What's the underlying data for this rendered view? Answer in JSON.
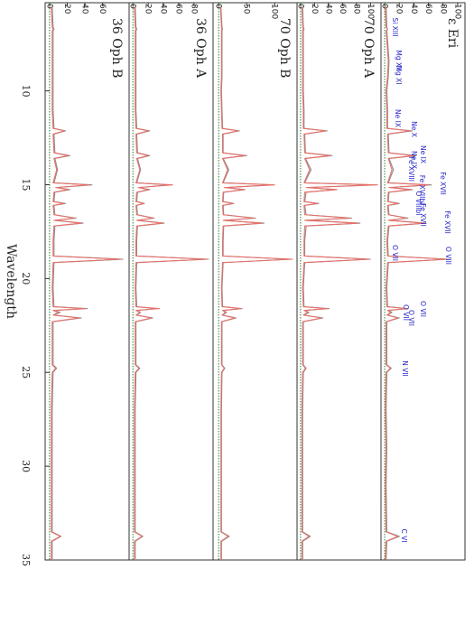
{
  "chart_data": [
    {
      "type": "line",
      "title": "ε Eri",
      "x": [
        5.5,
        6.6,
        6.7,
        6.8,
        8.4,
        9.2,
        10,
        11,
        12.0,
        12.13,
        12.3,
        13.3,
        13.45,
        13.6,
        14.2,
        14.9,
        15.01,
        15.15,
        15.26,
        15.4,
        15.9,
        16.0,
        16.1,
        16.6,
        16.78,
        16.9,
        17.05,
        17.2,
        18.0,
        18.8,
        18.97,
        19.15,
        20.5,
        21.5,
        21.6,
        21.7,
        21.8,
        21.95,
        22.1,
        22.3,
        23.5,
        24.6,
        24.78,
        25.0,
        27,
        29,
        31,
        33.5,
        33.74,
        34,
        35
      ],
      "xlim": [
        5.3,
        35
      ],
      "ylim": [
        -5,
        110
      ],
      "yticks": [
        0,
        20,
        40,
        60,
        80,
        100
      ],
      "series": [
        {
          "color": "#8c8c8c",
          "values": [
            2,
            3,
            4,
            3,
            6,
            5,
            3,
            4,
            4,
            38,
            5,
            6,
            43,
            6,
            12,
            5,
            64,
            8,
            38,
            6,
            5,
            20,
            5,
            6,
            32,
            6,
            57,
            6,
            4,
            5,
            88,
            5,
            3,
            4,
            32,
            5,
            10,
            4,
            20,
            3,
            3,
            3,
            9,
            3,
            2,
            3,
            2,
            3,
            20,
            3,
            2
          ]
        },
        {
          "color": "#e8706a",
          "values": [
            1,
            2,
            4,
            2,
            5,
            4,
            2,
            3,
            3,
            35,
            4,
            5,
            40,
            5,
            10,
            4,
            60,
            6,
            35,
            5,
            4,
            18,
            4,
            5,
            30,
            5,
            54,
            5,
            3,
            4,
            85,
            4,
            2,
            3,
            30,
            4,
            8,
            3,
            18,
            2,
            2,
            2,
            8,
            2,
            1,
            2,
            1,
            2,
            18,
            2,
            1
          ]
        }
      ],
      "annotations": [
        "Si XIII",
        "Mg XII",
        "Mg XI",
        "Ne IX",
        "Ne X",
        "Ne IX",
        "Ne IX",
        "Fe XVIII",
        "Fe XVII",
        "Fe XVIIbl",
        "O VIIIbl",
        "Fe XVII",
        "Fe XVII",
        "O VII",
        "O VIII",
        "O VII",
        "O VII",
        "O VII",
        "N VII",
        "C VI"
      ]
    },
    {
      "type": "line",
      "title": "70 Oph A",
      "x": [
        5.5,
        6.6,
        6.7,
        6.8,
        8.4,
        9.2,
        10,
        11,
        12.0,
        12.13,
        12.3,
        13.3,
        13.45,
        13.6,
        14.2,
        14.9,
        15.01,
        15.15,
        15.26,
        15.4,
        15.9,
        16.0,
        16.1,
        16.6,
        16.78,
        16.9,
        17.05,
        17.2,
        18.0,
        18.8,
        18.97,
        19.15,
        20.5,
        21.5,
        21.6,
        21.7,
        21.8,
        21.95,
        22.1,
        22.3,
        23.5,
        24.6,
        24.78,
        25.0,
        27,
        29,
        31,
        33.5,
        33.74,
        34,
        35
      ],
      "xlim": [
        5.3,
        35
      ],
      "ylim": [
        -5,
        115
      ],
      "yticks": [
        0,
        20,
        40,
        60,
        80,
        100
      ],
      "series": [
        {
          "color": "#8c8c8c",
          "values": [
            3,
            4,
            5,
            4,
            4,
            4,
            4,
            5,
            5,
            38,
            6,
            7,
            45,
            7,
            15,
            6,
            105,
            10,
            50,
            8,
            6,
            26,
            6,
            8,
            73,
            8,
            85,
            8,
            6,
            6,
            100,
            6,
            4,
            5,
            41,
            6,
            12,
            5,
            32,
            4,
            4,
            4,
            8,
            4,
            3,
            3,
            3,
            3,
            14,
            3,
            3
          ]
        },
        {
          "color": "#e8706a",
          "values": [
            2,
            3,
            4,
            3,
            3,
            3,
            3,
            4,
            4,
            36,
            5,
            6,
            42,
            6,
            13,
            5,
            110,
            8,
            52,
            6,
            5,
            24,
            5,
            6,
            70,
            6,
            82,
            6,
            5,
            5,
            98,
            5,
            3,
            4,
            38,
            5,
            10,
            4,
            30,
            3,
            3,
            3,
            7,
            3,
            2,
            2,
            2,
            2,
            12,
            2,
            2
          ]
        }
      ]
    },
    {
      "type": "line",
      "title": "70 Oph B",
      "x": [
        5.5,
        6.6,
        6.7,
        6.8,
        8.4,
        9.2,
        10,
        11,
        12.0,
        12.13,
        12.3,
        13.3,
        13.45,
        13.6,
        14.2,
        14.9,
        15.01,
        15.15,
        15.26,
        15.4,
        15.9,
        16.0,
        16.1,
        16.6,
        16.78,
        16.9,
        17.05,
        17.2,
        18.0,
        18.8,
        18.97,
        19.15,
        20.5,
        21.5,
        21.6,
        21.7,
        21.8,
        21.95,
        22.1,
        22.3,
        23.5,
        24.6,
        24.78,
        25.0,
        27,
        29,
        31,
        33.5,
        33.74,
        34,
        35
      ],
      "xlim": [
        5.3,
        35
      ],
      "ylim": [
        -10,
        140
      ],
      "yticks": [
        0,
        50,
        100
      ],
      "series": [
        {
          "color": "#8c8c8c",
          "values": [
            4,
            6,
            7,
            6,
            6,
            6,
            5,
            6,
            7,
            37,
            8,
            8,
            50,
            8,
            18,
            8,
            97,
            12,
            47,
            9,
            8,
            27,
            8,
            9,
            66,
            9,
            81,
            9,
            8,
            8,
            128,
            8,
            6,
            7,
            42,
            8,
            14,
            7,
            31,
            6,
            6,
            6,
            11,
            6,
            5,
            5,
            5,
            5,
            19,
            5,
            5
          ]
        },
        {
          "color": "#e8706a",
          "values": [
            3,
            5,
            6,
            5,
            5,
            5,
            4,
            5,
            6,
            35,
            7,
            7,
            47,
            7,
            16,
            7,
            100,
            10,
            45,
            8,
            7,
            25,
            7,
            8,
            63,
            8,
            78,
            8,
            7,
            7,
            132,
            7,
            5,
            6,
            40,
            7,
            12,
            6,
            29,
            5,
            5,
            5,
            10,
            5,
            4,
            4,
            4,
            4,
            17,
            4,
            4
          ]
        }
      ]
    },
    {
      "type": "line",
      "title": "36 Oph A",
      "x": [
        5.5,
        6.6,
        6.7,
        6.8,
        8.4,
        9.2,
        10,
        11,
        12.0,
        12.13,
        12.3,
        13.3,
        13.45,
        13.6,
        14.2,
        14.9,
        15.01,
        15.15,
        15.26,
        15.4,
        15.9,
        16.0,
        16.1,
        16.6,
        16.78,
        16.9,
        17.05,
        17.2,
        18.0,
        18.8,
        18.97,
        19.15,
        20.5,
        21.5,
        21.6,
        21.7,
        21.8,
        21.95,
        22.1,
        22.3,
        23.5,
        24.6,
        24.78,
        25.0,
        27,
        29,
        31,
        33.5,
        33.74,
        34,
        35
      ],
      "xlim": [
        5.3,
        35
      ],
      "ylim": [
        -5,
        105
      ],
      "yticks": [
        0,
        20,
        40,
        60,
        80
      ],
      "series": [
        {
          "color": "#8c8c8c",
          "values": [
            3,
            4,
            5,
            4,
            4,
            4,
            4,
            4,
            5,
            22,
            5,
            6,
            22,
            6,
            10,
            5,
            47,
            8,
            22,
            6,
            5,
            15,
            5,
            6,
            28,
            6,
            41,
            6,
            5,
            5,
            99,
            5,
            4,
            5,
            31,
            5,
            10,
            5,
            26,
            4,
            4,
            4,
            9,
            4,
            3,
            3,
            3,
            3,
            13,
            3,
            3
          ]
        },
        {
          "color": "#e8706a",
          "values": [
            2,
            3,
            4,
            3,
            3,
            3,
            3,
            3,
            4,
            20,
            4,
            5,
            20,
            5,
            9,
            4,
            52,
            7,
            20,
            5,
            4,
            14,
            4,
            5,
            26,
            5,
            39,
            5,
            4,
            4,
            97,
            4,
            3,
            4,
            35,
            4,
            9,
            4,
            24,
            3,
            3,
            3,
            8,
            3,
            2,
            2,
            2,
            2,
            12,
            2,
            2
          ]
        }
      ]
    },
    {
      "type": "line",
      "title": "36 Oph B",
      "xlabel": "Wavelength",
      "x": [
        5.5,
        6.6,
        6.7,
        6.8,
        8.4,
        9.2,
        10,
        11,
        12.0,
        12.13,
        12.3,
        13.3,
        13.45,
        13.6,
        14.2,
        14.9,
        15.01,
        15.15,
        15.26,
        15.4,
        15.9,
        16.0,
        16.1,
        16.6,
        16.78,
        16.9,
        17.05,
        17.2,
        18.0,
        18.8,
        18.97,
        19.15,
        20.5,
        21.5,
        21.6,
        21.7,
        21.8,
        21.95,
        22.1,
        22.3,
        23.5,
        24.6,
        24.78,
        25.0,
        27,
        29,
        31,
        33.5,
        33.74,
        34,
        35
      ],
      "xlim": [
        5.3,
        35
      ],
      "xticks": [
        10,
        15,
        20,
        25,
        30,
        35
      ],
      "ylim": [
        -5,
        90
      ],
      "yticks": [
        0,
        20,
        40,
        60
      ],
      "series": [
        {
          "color": "#8c8c8c",
          "values": [
            3,
            4,
            5,
            4,
            4,
            4,
            4,
            4,
            5,
            18,
            5,
            6,
            23,
            6,
            9,
            5,
            48,
            8,
            23,
            6,
            5,
            18,
            5,
            6,
            30,
            6,
            38,
            6,
            5,
            5,
            83,
            5,
            4,
            5,
            43,
            5,
            12,
            5,
            36,
            4,
            4,
            4,
            8,
            4,
            3,
            3,
            3,
            3,
            13,
            3,
            3
          ]
        },
        {
          "color": "#e8706a",
          "values": [
            2,
            3,
            4,
            3,
            3,
            3,
            3,
            3,
            4,
            17,
            4,
            5,
            21,
            5,
            8,
            4,
            45,
            7,
            21,
            5,
            4,
            16,
            4,
            5,
            28,
            5,
            36,
            5,
            4,
            4,
            80,
            4,
            3,
            4,
            40,
            4,
            10,
            4,
            33,
            3,
            3,
            3,
            7,
            3,
            2,
            2,
            2,
            2,
            12,
            2,
            2
          ]
        }
      ]
    }
  ]
}
